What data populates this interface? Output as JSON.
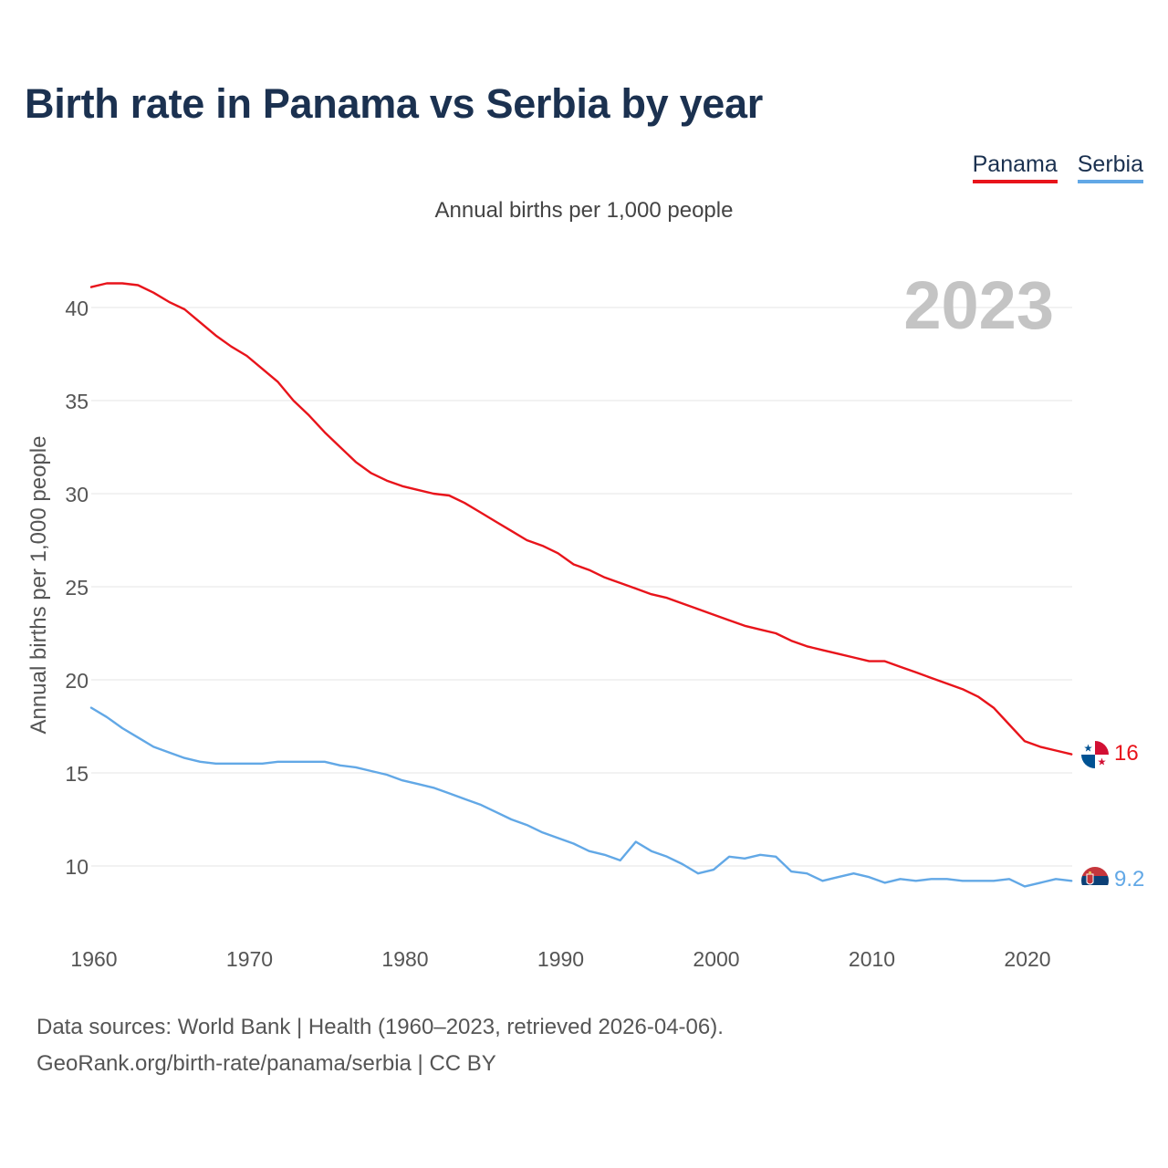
{
  "title": "Birth rate in Panama vs Serbia by year",
  "subtitle": "Annual births per 1,000 people",
  "legend": {
    "panama": "Panama",
    "serbia": "Serbia"
  },
  "colors": {
    "panama": "#e8141b",
    "serbia": "#62a8e6",
    "title": "#1b3150",
    "grid": "#e6e6e6",
    "year_watermark": "#c4c4c4"
  },
  "year_watermark": "2023",
  "end_labels": {
    "panama": "16",
    "serbia": "9.2"
  },
  "flags": {
    "panama": "panama-flag-icon",
    "serbia": "serbia-flag-icon"
  },
  "source_line1": "Data sources: World Bank | Health (1960–2023, retrieved 2026-04-06).",
  "source_line2": "GeoRank.org/birth-rate/panama/serbia | CC BY",
  "chart_data": {
    "type": "line",
    "title": "Birth rate in Panama vs Serbia by year",
    "xlabel": "",
    "ylabel": "Annual births per 1,000 people",
    "xlim": [
      1960,
      2023
    ],
    "ylim": [
      7,
      43
    ],
    "x_ticks": [
      1960,
      1970,
      1980,
      1990,
      2000,
      2010,
      2020
    ],
    "y_ticks": [
      10,
      15,
      20,
      25,
      30,
      35,
      40
    ],
    "grid": true,
    "legend_position": "top-right",
    "x": [
      1960,
      1961,
      1962,
      1963,
      1964,
      1965,
      1966,
      1967,
      1968,
      1969,
      1970,
      1971,
      1972,
      1973,
      1974,
      1975,
      1976,
      1977,
      1978,
      1979,
      1980,
      1981,
      1982,
      1983,
      1984,
      1985,
      1986,
      1987,
      1988,
      1989,
      1990,
      1991,
      1992,
      1993,
      1994,
      1995,
      1996,
      1997,
      1998,
      1999,
      2000,
      2001,
      2002,
      2003,
      2004,
      2005,
      2006,
      2007,
      2008,
      2009,
      2010,
      2011,
      2012,
      2013,
      2014,
      2015,
      2016,
      2017,
      2018,
      2019,
      2020,
      2021,
      2022,
      2023
    ],
    "series": [
      {
        "name": "Panama",
        "values": [
          41.1,
          41.3,
          41.3,
          41.2,
          40.8,
          40.3,
          39.9,
          39.2,
          38.5,
          37.9,
          37.4,
          36.7,
          36.0,
          35.0,
          34.2,
          33.3,
          32.5,
          31.7,
          31.1,
          30.7,
          30.4,
          30.2,
          30.0,
          29.9,
          29.5,
          29.0,
          28.5,
          28.0,
          27.5,
          27.2,
          26.8,
          26.2,
          25.9,
          25.5,
          25.2,
          24.9,
          24.6,
          24.4,
          24.1,
          23.8,
          23.5,
          23.2,
          22.9,
          22.7,
          22.5,
          22.1,
          21.8,
          21.6,
          21.4,
          21.2,
          21.0,
          21.0,
          20.7,
          20.4,
          20.1,
          19.8,
          19.5,
          19.1,
          18.5,
          17.6,
          16.7,
          16.4,
          16.2,
          16.0
        ]
      },
      {
        "name": "Serbia",
        "values": [
          18.5,
          18.0,
          17.4,
          16.9,
          16.4,
          16.1,
          15.8,
          15.6,
          15.5,
          15.5,
          15.5,
          15.5,
          15.6,
          15.6,
          15.6,
          15.6,
          15.4,
          15.3,
          15.1,
          14.9,
          14.6,
          14.4,
          14.2,
          13.9,
          13.6,
          13.3,
          12.9,
          12.5,
          12.2,
          11.8,
          11.5,
          11.2,
          10.8,
          10.6,
          10.3,
          11.3,
          10.8,
          10.5,
          10.1,
          9.6,
          9.8,
          10.5,
          10.4,
          10.6,
          10.5,
          9.7,
          9.6,
          9.2,
          9.4,
          9.6,
          9.4,
          9.1,
          9.3,
          9.2,
          9.3,
          9.3,
          9.2,
          9.2,
          9.2,
          9.3,
          8.9,
          9.1,
          9.3,
          9.2
        ]
      }
    ]
  }
}
